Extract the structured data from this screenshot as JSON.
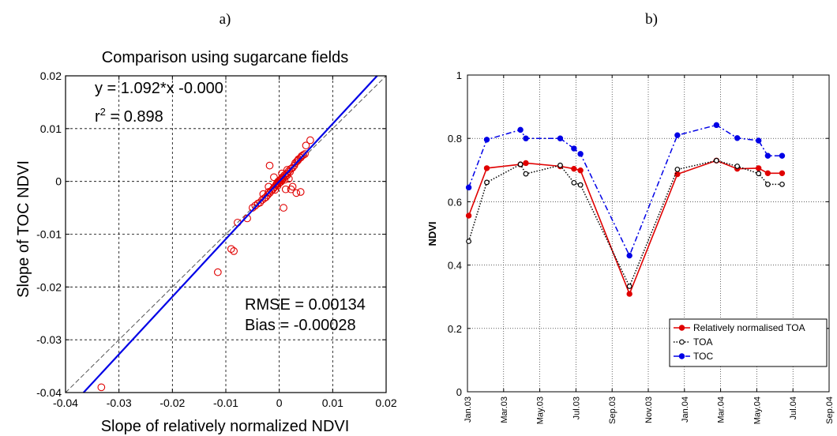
{
  "panel_labels": {
    "a": "a)",
    "b": "b)"
  },
  "chart_data": [
    {
      "type": "scatter",
      "title": "Comparison using sugarcane fields",
      "xlabel": "Slope of relatively normalized NDVI",
      "ylabel": "Slope of TOC NDVI",
      "xlim": [
        -0.04,
        0.02
      ],
      "ylim": [
        -0.04,
        0.02
      ],
      "xticks": [
        -0.04,
        -0.03,
        -0.02,
        -0.01,
        0,
        0.01,
        0.02
      ],
      "yticks": [
        -0.04,
        -0.03,
        -0.02,
        -0.01,
        0,
        0.01,
        0.02
      ],
      "xtick_labels": [
        "-0.04",
        "-0.03",
        "-0.02",
        "-0.01",
        "0",
        "0.01",
        "0.02"
      ],
      "ytick_labels": [
        "-0.04",
        "-0.03",
        "-0.02",
        "-0.01",
        "0",
        "0.01",
        "0.02"
      ],
      "grid": true,
      "annotations": {
        "equation": "y = 1.092*x -0.000",
        "r2_prefix": "r",
        "r2_sup": "2",
        "r2_suffix": " = 0.898",
        "rmse": "RMSE = 0.00134",
        "bias": "Bias = -0.00028"
      },
      "fit_line": {
        "slope": 1.092,
        "intercept": 0.0
      },
      "reference_line": {
        "slope": 1,
        "intercept": 0
      },
      "marker_color": "#e00000",
      "fit_color": "#0000e6",
      "points": [
        [
          -0.0333,
          -0.039
        ],
        [
          -0.0115,
          -0.0172
        ],
        [
          -0.009,
          -0.0128
        ],
        [
          -0.0085,
          -0.0132
        ],
        [
          -0.0078,
          -0.0078
        ],
        [
          -0.006,
          -0.007
        ],
        [
          -0.005,
          -0.005
        ],
        [
          -0.0045,
          -0.0046
        ],
        [
          -0.004,
          -0.0042
        ],
        [
          -0.0036,
          -0.004
        ],
        [
          -0.0032,
          -0.0035
        ],
        [
          -0.0028,
          -0.0032
        ],
        [
          -0.0025,
          -0.003
        ],
        [
          -0.0022,
          -0.0026
        ],
        [
          -0.002,
          -0.002
        ],
        [
          -0.0018,
          -0.0022
        ],
        [
          -0.0015,
          -0.0018
        ],
        [
          -0.0012,
          -0.0015
        ],
        [
          -0.001,
          -0.0012
        ],
        [
          -0.0008,
          -0.001
        ],
        [
          -0.0006,
          -0.0007
        ],
        [
          -0.0005,
          -0.0005
        ],
        [
          -0.0004,
          -0.0003
        ],
        [
          -0.0003,
          -0.0008
        ],
        [
          -0.0002,
          0.0
        ],
        [
          -0.0001,
          -0.0004
        ],
        [
          0.0,
          0.0001
        ],
        [
          0.0001,
          -0.0002
        ],
        [
          0.0002,
          0.0003
        ],
        [
          0.0003,
          -0.0001
        ],
        [
          0.0004,
          0.0005
        ],
        [
          0.0005,
          0.0002
        ],
        [
          0.0006,
          0.0008
        ],
        [
          0.0008,
          0.0006
        ],
        [
          0.001,
          0.0012
        ],
        [
          0.0012,
          0.001
        ],
        [
          0.0014,
          0.0015
        ],
        [
          0.0015,
          0.0012
        ],
        [
          0.0018,
          0.002
        ],
        [
          0.002,
          0.0018
        ],
        [
          0.0022,
          0.0024
        ],
        [
          0.0025,
          0.0026
        ],
        [
          0.0028,
          0.003
        ],
        [
          0.003,
          0.0035
        ],
        [
          0.0033,
          0.0038
        ],
        [
          0.0036,
          0.0042
        ],
        [
          0.004,
          0.0045
        ],
        [
          0.0045,
          0.005
        ],
        [
          0.005,
          0.0068
        ],
        [
          0.0058,
          0.0078
        ],
        [
          -0.0018,
          0.003
        ],
        [
          0.0012,
          -0.0015
        ],
        [
          0.0018,
          0.0005
        ],
        [
          0.0025,
          -0.001
        ],
        [
          0.0022,
          -0.0015
        ],
        [
          0.0008,
          -0.005
        ],
        [
          0.0032,
          -0.0022
        ],
        [
          0.004,
          -0.002
        ],
        [
          -0.001,
          0.0008
        ],
        [
          -0.002,
          -0.001
        ],
        [
          0.0005,
          0.0015
        ],
        [
          0.0015,
          0.0022
        ],
        [
          -0.003,
          -0.0024
        ],
        [
          -0.0008,
          -0.0016
        ],
        [
          0.001,
          0.0003
        ],
        [
          0.0035,
          0.004
        ],
        [
          0.0042,
          0.0048
        ],
        [
          0.0048,
          0.0052
        ]
      ]
    },
    {
      "type": "line",
      "ylabel": "NDVI",
      "ylim": [
        0,
        1
      ],
      "yticks": [
        0,
        0.2,
        0.4,
        0.6,
        0.8,
        1
      ],
      "ytick_labels": [
        "0",
        "0.2",
        "0.4",
        "0.6",
        "0.8",
        "1"
      ],
      "x_domain": [
        0,
        20
      ],
      "xtick_positions": [
        0,
        2,
        4,
        6,
        8,
        10,
        12,
        14,
        16,
        18,
        20
      ],
      "xtick_labels": [
        "Jan.03",
        "Mar.03",
        "May.03",
        "Jul.03",
        "Sep.03",
        "Nov.03",
        "Jan.04",
        "Mar.04",
        "May.04",
        "Jul.04",
        "Sep.04"
      ],
      "grid": true,
      "legend_position": "lower-right",
      "series": [
        {
          "name": "Relatively normalised TOA",
          "color": "#e00000",
          "style": "solid",
          "marker": "filled-circle",
          "x": [
            0.07,
            1.07,
            2.93,
            3.23,
            5.13,
            5.89,
            6.25,
            8.96,
            11.61,
            13.77,
            14.92,
            16.1,
            16.61,
            17.4
          ],
          "y": [
            0.556,
            0.706,
            0.718,
            0.722,
            0.712,
            0.704,
            0.699,
            0.309,
            0.687,
            0.73,
            0.704,
            0.706,
            0.69,
            0.69
          ]
        },
        {
          "name": "TOA",
          "color": "#000000",
          "style": "dotted",
          "marker": "open-circle",
          "x": [
            0.07,
            1.07,
            2.93,
            3.23,
            5.13,
            5.89,
            6.25,
            8.96,
            11.61,
            13.77,
            14.92,
            16.1,
            16.61,
            17.4
          ],
          "y": [
            0.475,
            0.661,
            0.718,
            0.688,
            0.715,
            0.66,
            0.653,
            0.333,
            0.702,
            0.73,
            0.712,
            0.689,
            0.655,
            0.655
          ]
        },
        {
          "name": "TOC",
          "color": "#0000e6",
          "style": "dashdot",
          "marker": "filled-circle",
          "x": [
            0.07,
            1.07,
            2.93,
            3.23,
            5.13,
            5.89,
            6.25,
            8.96,
            11.61,
            13.77,
            14.92,
            16.1,
            16.61,
            17.4
          ],
          "y": [
            0.645,
            0.796,
            0.827,
            0.8,
            0.8,
            0.768,
            0.751,
            0.43,
            0.81,
            0.842,
            0.801,
            0.793,
            0.745,
            0.745
          ]
        }
      ]
    }
  ]
}
